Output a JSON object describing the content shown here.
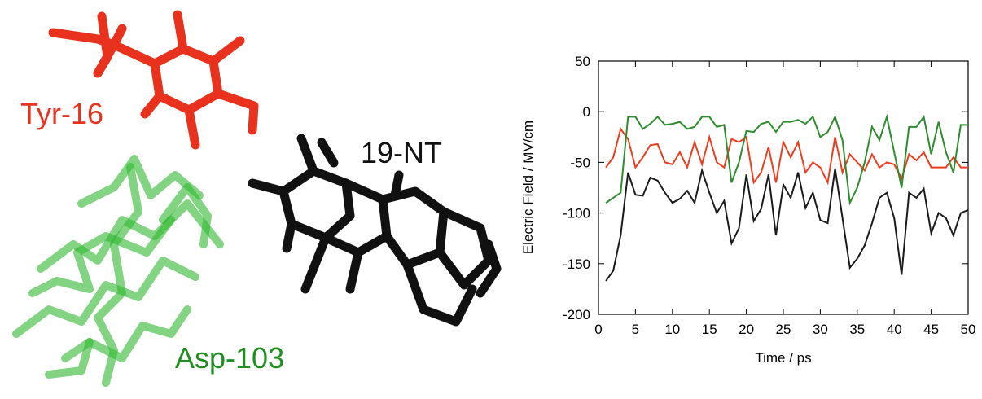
{
  "labels": {
    "tyr": "Tyr-16",
    "nt": "19-NT",
    "asp": "Asp-103"
  },
  "chart_data": {
    "type": "line",
    "xlabel": "Time / ps",
    "ylabel": "Electric Field / MV/cm",
    "x": [
      1,
      2,
      3,
      4,
      5,
      6,
      7,
      8,
      9,
      10,
      11,
      12,
      13,
      14,
      15,
      16,
      17,
      18,
      19,
      20,
      21,
      22,
      23,
      24,
      25,
      26,
      27,
      28,
      29,
      30,
      31,
      32,
      33,
      34,
      35,
      36,
      37,
      38,
      39,
      40,
      41,
      42,
      43,
      44,
      45,
      46,
      47,
      48,
      49,
      50
    ],
    "series": [
      {
        "color": "#1a1a1a",
        "values": [
          -167,
          -157,
          -122,
          -60,
          -82,
          -83,
          -65,
          -68,
          -80,
          -90,
          -86,
          -78,
          -90,
          -58,
          -80,
          -100,
          -88,
          -130,
          -115,
          -62,
          -108,
          -96,
          -62,
          -122,
          -72,
          -85,
          -60,
          -95,
          -80,
          -107,
          -110,
          -56,
          -105,
          -154,
          -145,
          -132,
          -110,
          -85,
          -80,
          -105,
          -161,
          -80,
          -85,
          -76,
          -120,
          -100,
          -105,
          -122,
          -100,
          -97
        ]
      },
      {
        "color": "#f03c1e",
        "values": [
          -55,
          -45,
          -17,
          -27,
          -55,
          -45,
          -33,
          -32,
          -50,
          -52,
          -40,
          -55,
          -30,
          -52,
          -25,
          -50,
          -55,
          -27,
          -30,
          -25,
          -70,
          -60,
          -35,
          -70,
          -30,
          -45,
          -30,
          -60,
          -50,
          -55,
          -70,
          -25,
          -60,
          -42,
          -50,
          -58,
          -42,
          -55,
          -50,
          -52,
          -66,
          -42,
          -48,
          -40,
          -55,
          -55,
          -55,
          -45,
          -55,
          -55
        ]
      },
      {
        "color": "#2e8b2e",
        "values": [
          -90,
          -85,
          -80,
          -5,
          -5,
          -17,
          -12,
          -5,
          -13,
          -12,
          -10,
          -17,
          -15,
          -5,
          -5,
          -15,
          -13,
          -70,
          -50,
          -19,
          -20,
          -12,
          -10,
          -20,
          -10,
          -10,
          -8,
          -12,
          -5,
          -25,
          -20,
          -5,
          -28,
          -90,
          -75,
          -50,
          -15,
          -28,
          -5,
          -40,
          -75,
          -15,
          -15,
          -5,
          -42,
          -10,
          -40,
          -60,
          -13,
          -13
        ]
      }
    ],
    "xlim": [
      0,
      50
    ],
    "xticks": [
      0,
      5,
      10,
      15,
      20,
      25,
      30,
      35,
      40,
      45,
      50
    ],
    "ylim": [
      -200,
      50
    ],
    "yticks": [
      -200,
      -150,
      -100,
      -50,
      0,
      50
    ]
  }
}
